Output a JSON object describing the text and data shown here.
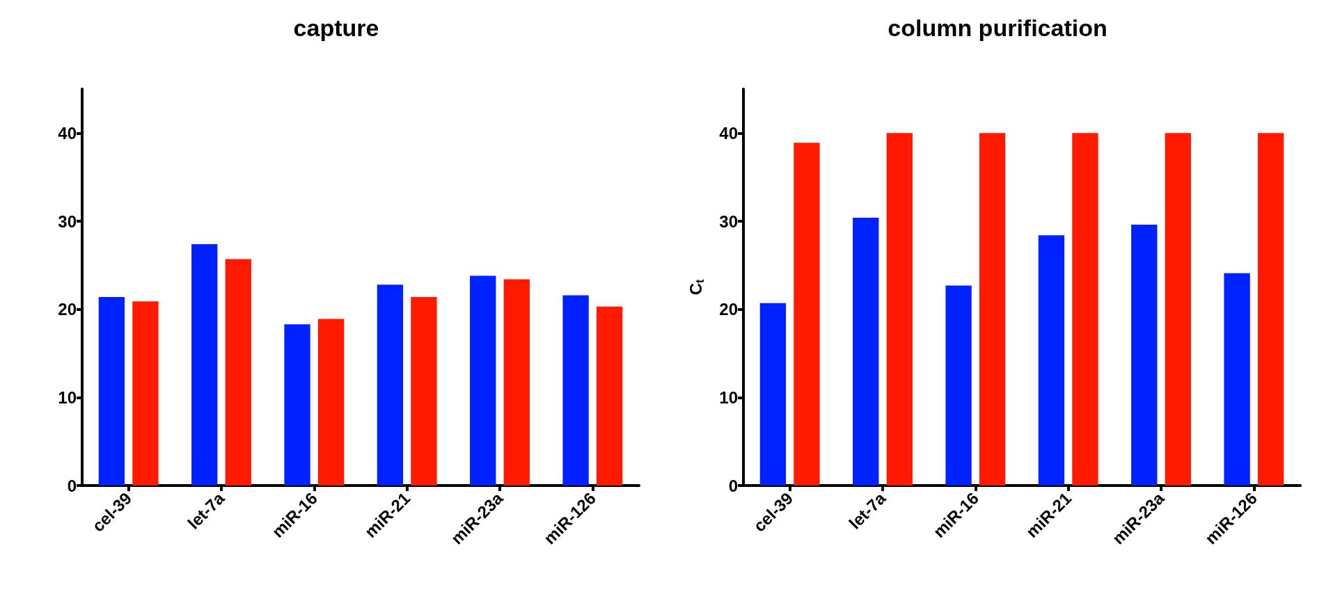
{
  "chart_data": [
    {
      "type": "bar",
      "title": "capture",
      "categories": [
        "cel-39",
        "let-7a",
        "miR-16",
        "miR-21",
        "miR-23a",
        "miR-126"
      ],
      "series": [
        {
          "color": "#0022ff",
          "values": [
            21.4,
            27.4,
            18.3,
            22.8,
            23.8,
            21.6
          ]
        },
        {
          "color": "#ff1a00",
          "values": [
            20.9,
            25.7,
            18.9,
            21.4,
            23.4,
            20.3
          ]
        }
      ],
      "ylim": [
        0,
        45
      ],
      "yticks": [
        0,
        10,
        20,
        30,
        40
      ],
      "grid": false
    },
    {
      "type": "bar",
      "title": "column purification",
      "ylabel": "C$_{t}$",
      "categories": [
        "cel-39",
        "let-7a",
        "miR-16",
        "miR-21",
        "miR-23a",
        "miR-126"
      ],
      "series": [
        {
          "color": "#0022ff",
          "values": [
            20.7,
            30.4,
            22.7,
            28.4,
            29.6,
            24.1
          ]
        },
        {
          "color": "#ff1a00",
          "values": [
            38.9,
            40,
            40,
            40,
            40,
            40
          ]
        }
      ],
      "ylim": [
        0,
        45
      ],
      "yticks": [
        0,
        10,
        20,
        30,
        40
      ],
      "grid": false
    }
  ]
}
